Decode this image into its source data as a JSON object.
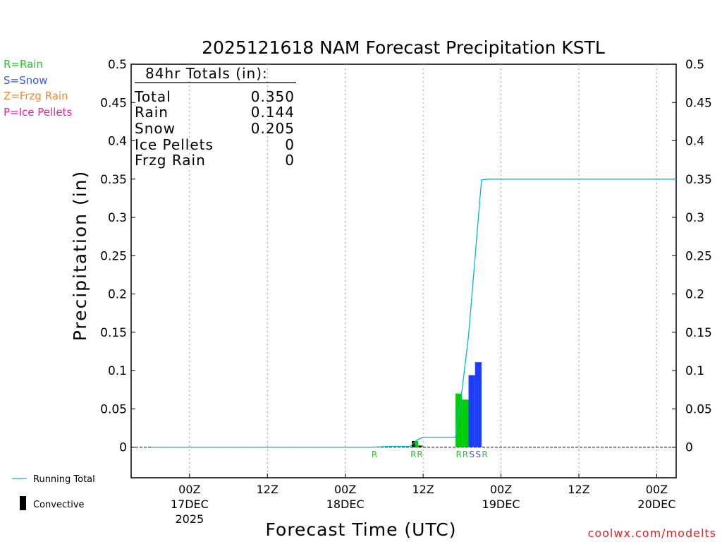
{
  "chart_data": {
    "type": "bar",
    "title": "2025121618 NAM Forecast Precipitation KSTL",
    "xlabel": "Forecast Time (UTC)",
    "ylabel": "Precipitation (in)",
    "ylim": [
      -0.04,
      0.5
    ],
    "xlim_hours": [
      -3,
      81
    ],
    "y_ticks": [
      0,
      0.05,
      0.1,
      0.15,
      0.2,
      0.25,
      0.3,
      0.35,
      0.4,
      0.45,
      0.5
    ],
    "y_tick_labels": [
      "0",
      "0.05",
      "0.1",
      "0.15",
      "0.2",
      "0.25",
      "0.3",
      "0.35",
      "0.4",
      "0.45",
      "0.5"
    ],
    "x_ticks": [
      {
        "hour": 6,
        "line1": "00Z",
        "line2": "17DEC",
        "line3": "2025"
      },
      {
        "hour": 18,
        "line1": "12Z",
        "line2": "",
        "line3": ""
      },
      {
        "hour": 30,
        "line1": "00Z",
        "line2": "18DEC",
        "line3": ""
      },
      {
        "hour": 42,
        "line1": "12Z",
        "line2": "",
        "line3": ""
      },
      {
        "hour": 54,
        "line1": "00Z",
        "line2": "19DEC",
        "line3": ""
      },
      {
        "hour": 66,
        "line1": "12Z",
        "line2": "",
        "line3": ""
      },
      {
        "hour": 78,
        "line1": "00Z",
        "line2": "20DEC",
        "line3": ""
      }
    ],
    "bars": [
      {
        "hour": 40.75,
        "value": 0.008,
        "type": "R"
      },
      {
        "hour": 41.5,
        "value": 0.002,
        "type": "R"
      },
      {
        "hour": 47.5,
        "value": 0.07,
        "type": "R"
      },
      {
        "hour": 48.5,
        "value": 0.062,
        "type": "R"
      },
      {
        "hour": 49.5,
        "value": 0.094,
        "type": "S"
      },
      {
        "hour": 50.5,
        "value": 0.111,
        "type": "S"
      }
    ],
    "convective": [
      {
        "hour": 40.5,
        "value": 0.008
      },
      {
        "hour": 41.5,
        "value": 0.002
      }
    ],
    "running_total": {
      "hours": [
        0,
        34,
        37,
        40,
        41,
        42,
        44,
        47,
        48,
        49,
        51,
        52,
        81
      ],
      "values": [
        0,
        0,
        0.001,
        0.001,
        0.009,
        0.013,
        0.013,
        0.013,
        0.075,
        0.145,
        0.349,
        0.35,
        0.35
      ]
    },
    "type_labels": [
      {
        "hour": 34.5,
        "text": "R",
        "type": "R"
      },
      {
        "hour": 40.5,
        "text": "R",
        "type": "R"
      },
      {
        "hour": 41.5,
        "text": "R",
        "type": "R"
      },
      {
        "hour": 47.5,
        "text": "R",
        "type": "R"
      },
      {
        "hour": 48.5,
        "text": "R",
        "type": "R"
      },
      {
        "hour": 49.5,
        "text": "S",
        "type": "S"
      },
      {
        "hour": 50.5,
        "text": "S",
        "type": "S"
      },
      {
        "hour": 51.5,
        "text": "R",
        "type": "R"
      }
    ],
    "totals_box": {
      "header": "84hr Totals (in):",
      "rows": [
        {
          "label": "Total",
          "value": "0.350"
        },
        {
          "label": "Rain",
          "value": "0.144"
        },
        {
          "label": "Snow",
          "value": "0.205"
        },
        {
          "label": "Ice Pellets",
          "value": "0"
        },
        {
          "label": "Frzg Rain",
          "value": "0"
        }
      ]
    },
    "legend_types": [
      {
        "text": "R=Rain",
        "color": "#22cc22"
      },
      {
        "text": "S=Snow",
        "color": "#3355ff"
      },
      {
        "text": "Z=Frzg Rain",
        "color": "#ee8833"
      },
      {
        "text": "P=Ice Pellets",
        "color": "#ee2299"
      }
    ],
    "legend_series": {
      "running_total": "Running Total",
      "convective": "Convective"
    },
    "credit": "coolwx.com/modelts",
    "colors": {
      "rain": "#00cc00",
      "snow": "#1f3dff",
      "running_total": "#00bbcc",
      "convective": "#000000",
      "credit": "#dd2222"
    }
  }
}
